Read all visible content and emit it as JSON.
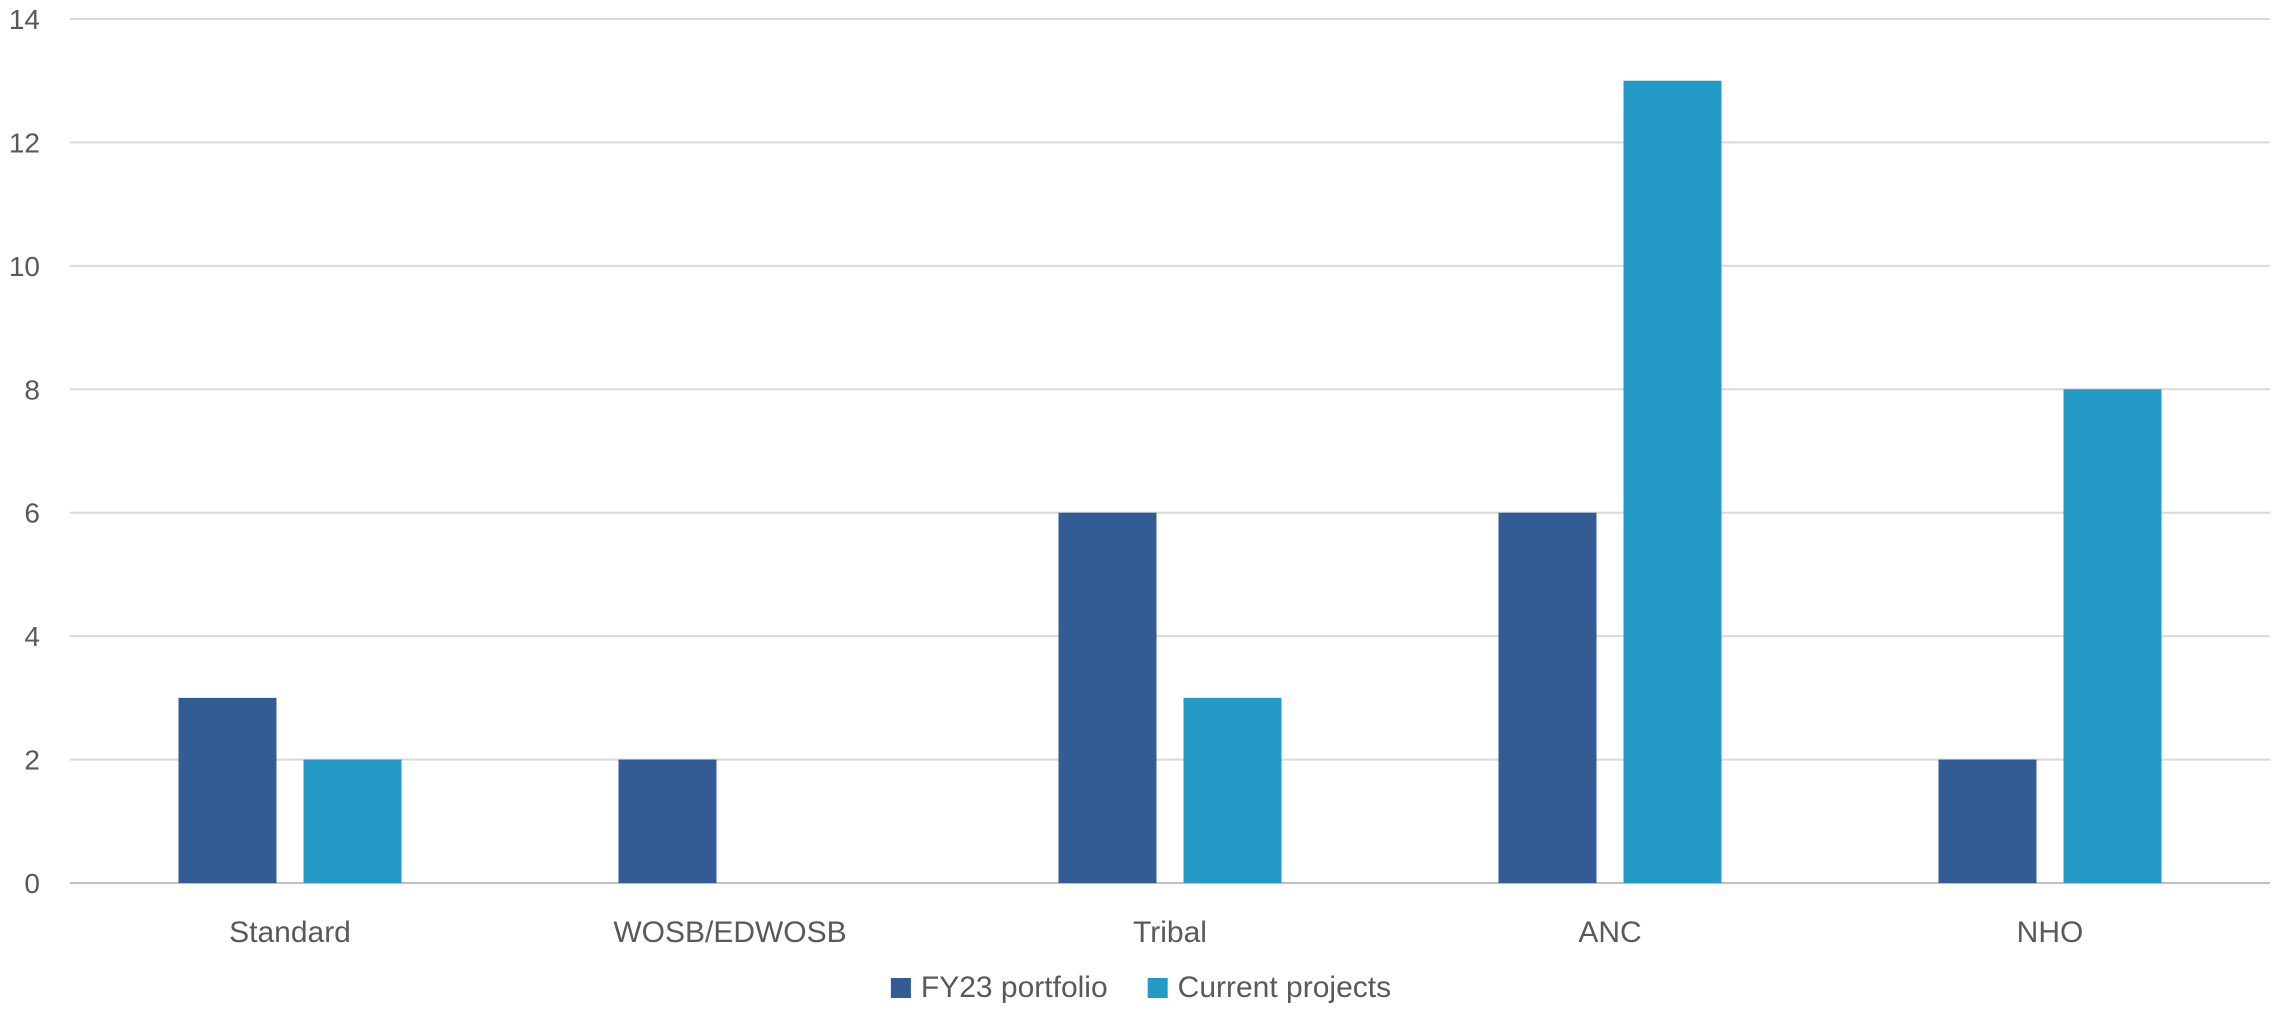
{
  "chart_data": {
    "type": "bar",
    "categories": [
      "Standard",
      "WOSB/EDWOSB",
      "Tribal",
      "ANC",
      "NHO"
    ],
    "series": [
      {
        "name": "FY23 portfolio",
        "color": "#335c94",
        "values": [
          3,
          2,
          6,
          6,
          2
        ]
      },
      {
        "name": "Current projects",
        "color": "#249bc6",
        "values": [
          2,
          0,
          3,
          13,
          8
        ]
      }
    ],
    "ylim": [
      0,
      14
    ],
    "yticks": [
      0,
      2,
      4,
      6,
      8,
      10,
      12,
      14
    ],
    "grid": true,
    "legend": "bottom"
  }
}
